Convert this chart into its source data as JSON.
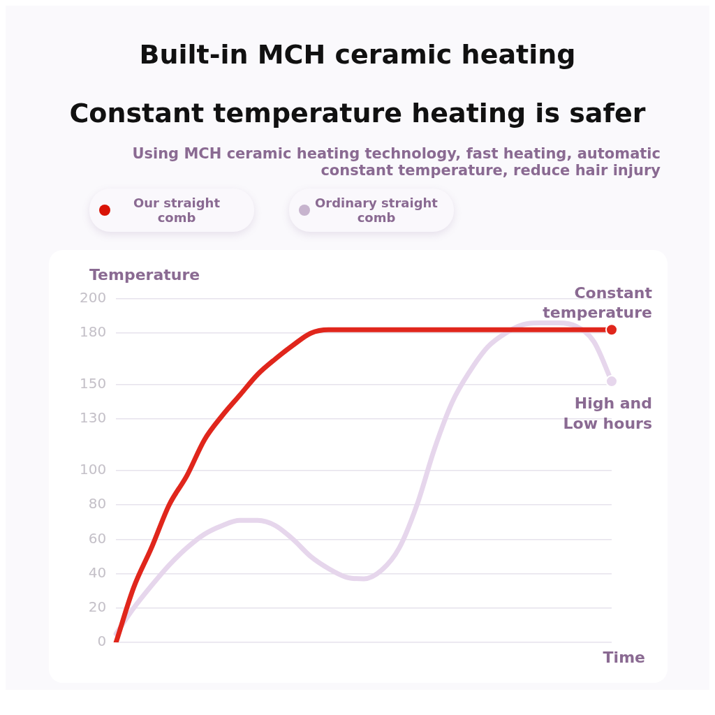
{
  "chart_data": {
    "type": "line",
    "title": "Built-in MCH ceramic heating",
    "subtitle": "Constant temperature heating is safer",
    "xlabel": "Time",
    "ylabel": "Temperature",
    "annotations": [
      "Using MCH ceramic heating technology, fast heating, automatic constant temperature, reduce hair injury",
      "Constant temperature",
      "High and Low hours"
    ],
    "categories": [
      null,
      null,
      null,
      null,
      null,
      null,
      null,
      null,
      null,
      null,
      null,
      null,
      null,
      null,
      null,
      null,
      null,
      null,
      null,
      null,
      null,
      null,
      null,
      null,
      null,
      null,
      null,
      null,
      null
    ],
    "series": [
      {
        "name": "Our straight comb",
        "color": "#e0261c",
        "values": [
          0,
          32,
          55,
          80,
          97,
          118,
          132,
          144,
          156,
          165,
          173,
          180,
          182,
          182,
          182,
          182,
          182,
          182,
          182,
          182,
          182,
          182,
          182,
          182,
          182,
          182,
          182,
          182,
          182
        ]
      },
      {
        "name": "Ordinary straight comb",
        "color": "#e6d6ec",
        "values": [
          5,
          20,
          33,
          45,
          55,
          63,
          68,
          71,
          71,
          68,
          60,
          50,
          43,
          38,
          37,
          42,
          55,
          80,
          113,
          140,
          158,
          172,
          180,
          185,
          186,
          186,
          184,
          175,
          152
        ]
      }
    ],
    "ylim": [
      0,
      200
    ],
    "yticks": [
      0,
      20,
      40,
      60,
      80,
      100,
      130,
      150,
      180,
      200
    ],
    "grid": "y",
    "legend": "top left",
    "tick_labels": "y",
    "line_style": "solid"
  }
}
